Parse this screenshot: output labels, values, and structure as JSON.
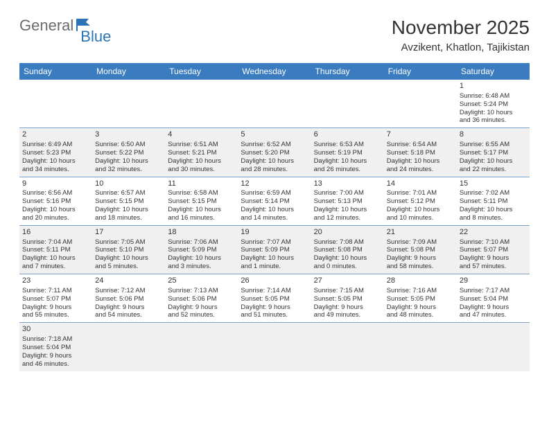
{
  "brand": {
    "part1": "General",
    "part2": "Blue"
  },
  "title": "November 2025",
  "location": "Avzikent, Khatlon, Tajikistan",
  "colors": {
    "header_bg": "#3a7cbf",
    "header_text": "#ffffff",
    "row_alt_bg": "#f0f0f0",
    "border": "#7aa3c9",
    "text": "#333333",
    "logo_dark": "#6b6b6b",
    "logo_blue": "#2b74b8"
  },
  "day_names": [
    "Sunday",
    "Monday",
    "Tuesday",
    "Wednesday",
    "Thursday",
    "Friday",
    "Saturday"
  ],
  "weeks": [
    [
      null,
      null,
      null,
      null,
      null,
      null,
      {
        "n": "1",
        "sr": "Sunrise: 6:48 AM",
        "ss": "Sunset: 5:24 PM",
        "d1": "Daylight: 10 hours",
        "d2": "and 36 minutes."
      }
    ],
    [
      {
        "n": "2",
        "sr": "Sunrise: 6:49 AM",
        "ss": "Sunset: 5:23 PM",
        "d1": "Daylight: 10 hours",
        "d2": "and 34 minutes."
      },
      {
        "n": "3",
        "sr": "Sunrise: 6:50 AM",
        "ss": "Sunset: 5:22 PM",
        "d1": "Daylight: 10 hours",
        "d2": "and 32 minutes."
      },
      {
        "n": "4",
        "sr": "Sunrise: 6:51 AM",
        "ss": "Sunset: 5:21 PM",
        "d1": "Daylight: 10 hours",
        "d2": "and 30 minutes."
      },
      {
        "n": "5",
        "sr": "Sunrise: 6:52 AM",
        "ss": "Sunset: 5:20 PM",
        "d1": "Daylight: 10 hours",
        "d2": "and 28 minutes."
      },
      {
        "n": "6",
        "sr": "Sunrise: 6:53 AM",
        "ss": "Sunset: 5:19 PM",
        "d1": "Daylight: 10 hours",
        "d2": "and 26 minutes."
      },
      {
        "n": "7",
        "sr": "Sunrise: 6:54 AM",
        "ss": "Sunset: 5:18 PM",
        "d1": "Daylight: 10 hours",
        "d2": "and 24 minutes."
      },
      {
        "n": "8",
        "sr": "Sunrise: 6:55 AM",
        "ss": "Sunset: 5:17 PM",
        "d1": "Daylight: 10 hours",
        "d2": "and 22 minutes."
      }
    ],
    [
      {
        "n": "9",
        "sr": "Sunrise: 6:56 AM",
        "ss": "Sunset: 5:16 PM",
        "d1": "Daylight: 10 hours",
        "d2": "and 20 minutes."
      },
      {
        "n": "10",
        "sr": "Sunrise: 6:57 AM",
        "ss": "Sunset: 5:15 PM",
        "d1": "Daylight: 10 hours",
        "d2": "and 18 minutes."
      },
      {
        "n": "11",
        "sr": "Sunrise: 6:58 AM",
        "ss": "Sunset: 5:15 PM",
        "d1": "Daylight: 10 hours",
        "d2": "and 16 minutes."
      },
      {
        "n": "12",
        "sr": "Sunrise: 6:59 AM",
        "ss": "Sunset: 5:14 PM",
        "d1": "Daylight: 10 hours",
        "d2": "and 14 minutes."
      },
      {
        "n": "13",
        "sr": "Sunrise: 7:00 AM",
        "ss": "Sunset: 5:13 PM",
        "d1": "Daylight: 10 hours",
        "d2": "and 12 minutes."
      },
      {
        "n": "14",
        "sr": "Sunrise: 7:01 AM",
        "ss": "Sunset: 5:12 PM",
        "d1": "Daylight: 10 hours",
        "d2": "and 10 minutes."
      },
      {
        "n": "15",
        "sr": "Sunrise: 7:02 AM",
        "ss": "Sunset: 5:11 PM",
        "d1": "Daylight: 10 hours",
        "d2": "and 8 minutes."
      }
    ],
    [
      {
        "n": "16",
        "sr": "Sunrise: 7:04 AM",
        "ss": "Sunset: 5:11 PM",
        "d1": "Daylight: 10 hours",
        "d2": "and 7 minutes."
      },
      {
        "n": "17",
        "sr": "Sunrise: 7:05 AM",
        "ss": "Sunset: 5:10 PM",
        "d1": "Daylight: 10 hours",
        "d2": "and 5 minutes."
      },
      {
        "n": "18",
        "sr": "Sunrise: 7:06 AM",
        "ss": "Sunset: 5:09 PM",
        "d1": "Daylight: 10 hours",
        "d2": "and 3 minutes."
      },
      {
        "n": "19",
        "sr": "Sunrise: 7:07 AM",
        "ss": "Sunset: 5:09 PM",
        "d1": "Daylight: 10 hours",
        "d2": "and 1 minute."
      },
      {
        "n": "20",
        "sr": "Sunrise: 7:08 AM",
        "ss": "Sunset: 5:08 PM",
        "d1": "Daylight: 10 hours",
        "d2": "and 0 minutes."
      },
      {
        "n": "21",
        "sr": "Sunrise: 7:09 AM",
        "ss": "Sunset: 5:08 PM",
        "d1": "Daylight: 9 hours",
        "d2": "and 58 minutes."
      },
      {
        "n": "22",
        "sr": "Sunrise: 7:10 AM",
        "ss": "Sunset: 5:07 PM",
        "d1": "Daylight: 9 hours",
        "d2": "and 57 minutes."
      }
    ],
    [
      {
        "n": "23",
        "sr": "Sunrise: 7:11 AM",
        "ss": "Sunset: 5:07 PM",
        "d1": "Daylight: 9 hours",
        "d2": "and 55 minutes."
      },
      {
        "n": "24",
        "sr": "Sunrise: 7:12 AM",
        "ss": "Sunset: 5:06 PM",
        "d1": "Daylight: 9 hours",
        "d2": "and 54 minutes."
      },
      {
        "n": "25",
        "sr": "Sunrise: 7:13 AM",
        "ss": "Sunset: 5:06 PM",
        "d1": "Daylight: 9 hours",
        "d2": "and 52 minutes."
      },
      {
        "n": "26",
        "sr": "Sunrise: 7:14 AM",
        "ss": "Sunset: 5:05 PM",
        "d1": "Daylight: 9 hours",
        "d2": "and 51 minutes."
      },
      {
        "n": "27",
        "sr": "Sunrise: 7:15 AM",
        "ss": "Sunset: 5:05 PM",
        "d1": "Daylight: 9 hours",
        "d2": "and 49 minutes."
      },
      {
        "n": "28",
        "sr": "Sunrise: 7:16 AM",
        "ss": "Sunset: 5:05 PM",
        "d1": "Daylight: 9 hours",
        "d2": "and 48 minutes."
      },
      {
        "n": "29",
        "sr": "Sunrise: 7:17 AM",
        "ss": "Sunset: 5:04 PM",
        "d1": "Daylight: 9 hours",
        "d2": "and 47 minutes."
      }
    ],
    [
      {
        "n": "30",
        "sr": "Sunrise: 7:18 AM",
        "ss": "Sunset: 5:04 PM",
        "d1": "Daylight: 9 hours",
        "d2": "and 46 minutes."
      },
      null,
      null,
      null,
      null,
      null,
      null
    ]
  ]
}
